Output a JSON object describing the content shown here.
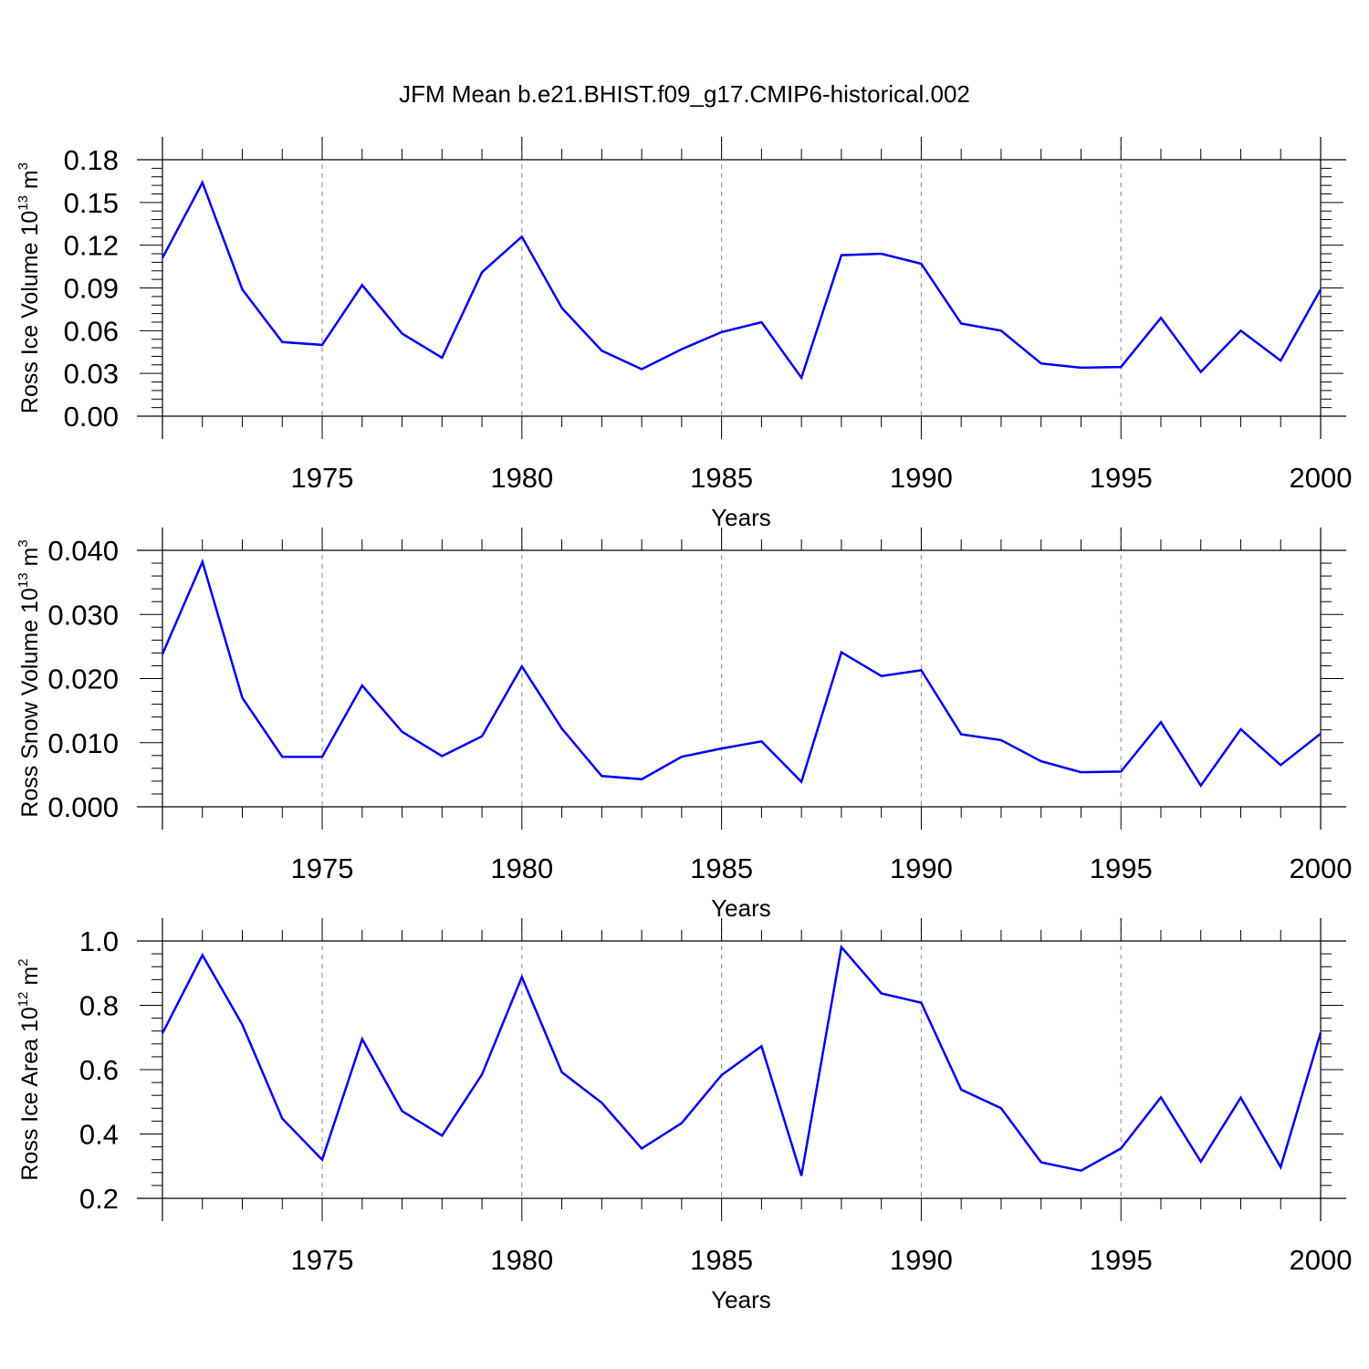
{
  "title": "JFM Mean b.e21.BHIST.f09_g17.CMIP6-historical.002",
  "chart_data": [
    {
      "type": "line",
      "ylabel": {
        "text": "Ross Ice Volume 10",
        "exp": "13",
        "unit": " m",
        "unit_exp": "3"
      },
      "xlabel": "Years",
      "xlim": [
        1971,
        2000
      ],
      "ylim": [
        0,
        0.18
      ],
      "x_ticks": [
        1975,
        1980,
        1985,
        1990,
        1995,
        2000
      ],
      "y_ticks": [
        "0.00",
        "0.03",
        "0.06",
        "0.09",
        "0.12",
        "0.15",
        "0.18"
      ],
      "color": "#0000ee",
      "x": [
        1971,
        1972,
        1973,
        1974,
        1975,
        1976,
        1977,
        1978,
        1979,
        1980,
        1981,
        1982,
        1983,
        1984,
        1985,
        1986,
        1987,
        1988,
        1989,
        1990,
        1991,
        1992,
        1993,
        1994,
        1995,
        1996,
        1997,
        1998,
        1999,
        2000
      ],
      "values": [
        0.111,
        0.164,
        0.089,
        0.052,
        0.05,
        0.092,
        0.058,
        0.041,
        0.101,
        0.126,
        0.076,
        0.046,
        0.033,
        0.047,
        0.059,
        0.066,
        0.027,
        0.113,
        0.114,
        0.107,
        0.065,
        0.06,
        0.037,
        0.034,
        0.0345,
        0.069,
        0.031,
        0.06,
        0.039,
        0.089
      ]
    },
    {
      "type": "line",
      "ylabel": {
        "text": "Ross Snow Volume 10",
        "exp": "13",
        "unit": " m",
        "unit_exp": "3"
      },
      "xlabel": "Years",
      "xlim": [
        1971,
        2000
      ],
      "ylim": [
        0,
        0.04
      ],
      "x_ticks": [
        1975,
        1980,
        1985,
        1990,
        1995,
        2000
      ],
      "y_ticks": [
        "0.000",
        "0.010",
        "0.020",
        "0.030",
        "0.040"
      ],
      "color": "#0000ee",
      "x": [
        1971,
        1972,
        1973,
        1974,
        1975,
        1976,
        1977,
        1978,
        1979,
        1980,
        1981,
        1982,
        1983,
        1984,
        1985,
        1986,
        1987,
        1988,
        1989,
        1990,
        1991,
        1992,
        1993,
        1994,
        1995,
        1996,
        1997,
        1998,
        1999,
        2000
      ],
      "values": [
        0.0238,
        0.0382,
        0.017,
        0.0078,
        0.0078,
        0.0189,
        0.0117,
        0.0079,
        0.011,
        0.0219,
        0.0122,
        0.0048,
        0.0043,
        0.0078,
        0.0091,
        0.0102,
        0.0039,
        0.0241,
        0.0204,
        0.0213,
        0.0113,
        0.0104,
        0.0071,
        0.0054,
        0.0055,
        0.0132,
        0.0033,
        0.0121,
        0.0065,
        0.0114
      ]
    },
    {
      "type": "line",
      "ylabel": {
        "text": "Ross Ice Area 10",
        "exp": "12",
        "unit": " m",
        "unit_exp": "2"
      },
      "xlabel": "Years",
      "xlim": [
        1971,
        2000
      ],
      "ylim": [
        0.2,
        1.0
      ],
      "x_ticks": [
        1975,
        1980,
        1985,
        1990,
        1995,
        2000
      ],
      "y_ticks": [
        "0.2",
        "0.4",
        "0.6",
        "0.8",
        "1.0"
      ],
      "color": "#0000ee",
      "x": [
        1971,
        1972,
        1973,
        1974,
        1975,
        1976,
        1977,
        1978,
        1979,
        1980,
        1981,
        1982,
        1983,
        1984,
        1985,
        1986,
        1987,
        1988,
        1989,
        1990,
        1991,
        1992,
        1993,
        1994,
        1995,
        1996,
        1997,
        1998,
        1999,
        2000
      ],
      "values": [
        0.713,
        0.956,
        0.74,
        0.448,
        0.32,
        0.695,
        0.471,
        0.395,
        0.585,
        0.888,
        0.592,
        0.497,
        0.355,
        0.434,
        0.583,
        0.673,
        0.27,
        0.981,
        0.837,
        0.808,
        0.538,
        0.48,
        0.312,
        0.286,
        0.355,
        0.514,
        0.314,
        0.513,
        0.297,
        0.715
      ]
    }
  ]
}
